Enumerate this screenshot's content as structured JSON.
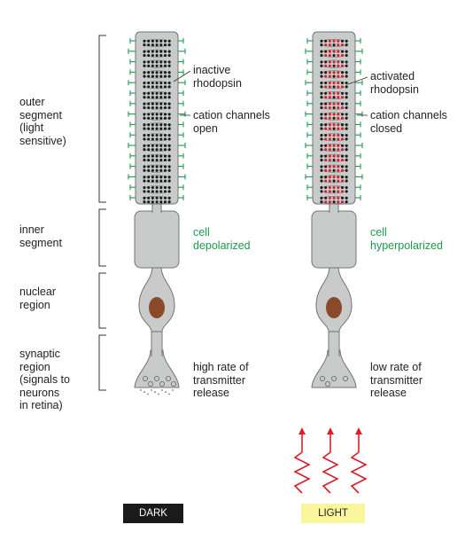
{
  "regions": {
    "outer_segment": "outer\nsegment\n(light\nsensitive)",
    "inner_segment": "inner\nsegment",
    "nuclear_region": "nuclear\nregion",
    "synaptic_region": "synaptic\nregion\n(signals to\nneurons\nin retina)"
  },
  "dark_cell": {
    "rhodopsin": "inactive\nrhodopsin",
    "channels": "cation channels\nopen",
    "state": "cell\ndepolarized",
    "release": "high rate of\ntransmitter\nrelease",
    "badge": "DARK"
  },
  "light_cell": {
    "rhodopsin": "activated\nrhodopsin",
    "channels": "cation channels\nclosed",
    "state": "cell\nhyperpolarized",
    "release": "low rate of\ntransmitter\nrelease",
    "badge": "LIGHT"
  },
  "colors": {
    "cell_fill": "#c8cbc9",
    "cell_stroke": "#6f7472",
    "nucleus": "#8a4a2a",
    "channel": "#1b9a4b",
    "rhodopsin_inactive": "#1a1a1a",
    "rhodopsin_active": "#d6202a",
    "light_rays": "#d6202a"
  }
}
